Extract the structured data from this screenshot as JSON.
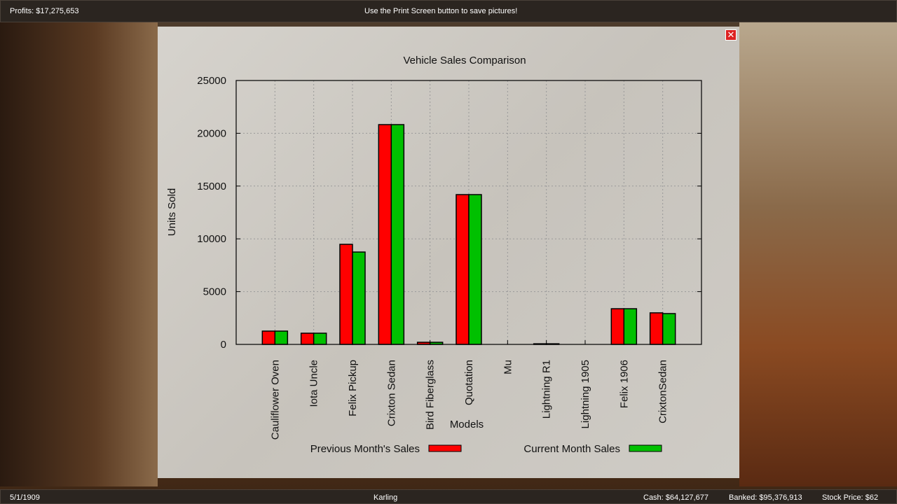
{
  "topbar": {
    "profits": "Profits: $17,275,653",
    "message": "Use the Print Screen button to save pictures!"
  },
  "bottombar": {
    "date": "5/1/1909",
    "company": "Karling",
    "cash": "Cash: $64,127,677",
    "banked": "Banked: $95,376,913",
    "stock": "Stock Price: $62"
  },
  "dialog": {
    "close_icon": "close-icon"
  },
  "chart_data": {
    "type": "bar",
    "title": "Vehicle Sales Comparison",
    "xlabel": "Models",
    "ylabel": "Units Sold",
    "ylim": [
      0,
      25000
    ],
    "yticks": [
      "0",
      "5000",
      "10000",
      "15000",
      "20000",
      "25000"
    ],
    "grid": true,
    "legend_placement": "bottom",
    "categories": [
      "Cauliflower Oven",
      "Iota Uncle",
      "Felix Pickup",
      "Crixton Sedan",
      "Bird Fiberglass",
      "Quotation",
      "Mu",
      "Lightning R1",
      "Lightning 1905",
      "Felix 1906",
      "CrixtonSedan"
    ],
    "series": [
      {
        "name": "Previous Month's Sales",
        "color": "#ff0000",
        "values": [
          1260,
          1060,
          9480,
          20820,
          200,
          14190,
          0,
          60,
          0,
          3380,
          2990
        ]
      },
      {
        "name": "Current Month Sales",
        "color": "#00c000",
        "values": [
          1260,
          1060,
          8750,
          20820,
          200,
          14190,
          0,
          60,
          0,
          3380,
          2920
        ]
      }
    ]
  }
}
